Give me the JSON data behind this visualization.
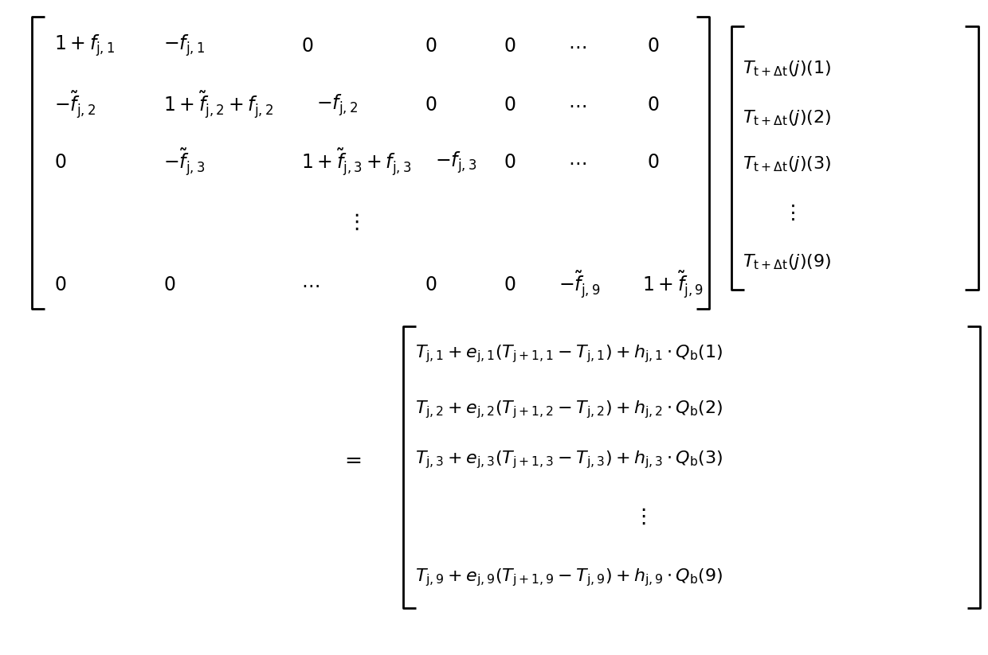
{
  "background_color": "#ffffff",
  "figsize": [
    12.4,
    8.23
  ],
  "dpi": 100,
  "font_size": 17
}
